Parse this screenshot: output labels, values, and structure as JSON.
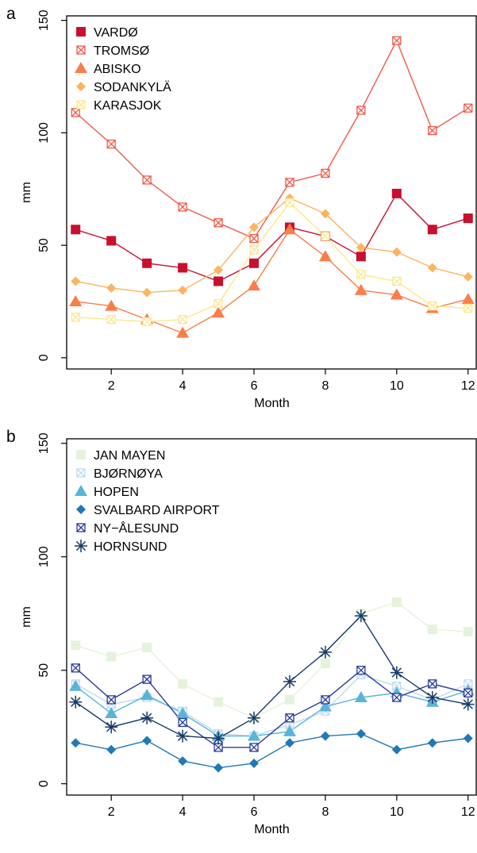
{
  "chart_data": [
    {
      "panel_label": "a",
      "type": "line",
      "xlabel": "Month",
      "ylabel": "mm",
      "xlim": [
        0.75,
        12.25
      ],
      "ylim": [
        -5,
        152
      ],
      "xticks": [
        2,
        4,
        6,
        8,
        10,
        12
      ],
      "yticks": [
        0,
        50,
        100,
        150
      ],
      "x": [
        1,
        2,
        3,
        4,
        5,
        6,
        7,
        8,
        9,
        10,
        11,
        12
      ],
      "legend_position": "top-left",
      "series": [
        {
          "name": "VARDØ",
          "color": "#c8102e",
          "marker": "square",
          "values": [
            57,
            52,
            42,
            40,
            34,
            42,
            58,
            54,
            45,
            73,
            57,
            62
          ]
        },
        {
          "name": "TROMSØ",
          "color": "#f05a4a",
          "marker": "boxed-x",
          "values": [
            109,
            95,
            79,
            67,
            60,
            53,
            78,
            82,
            110,
            141,
            101,
            111
          ]
        },
        {
          "name": "ABISKO",
          "color": "#fb7d48",
          "marker": "triangle",
          "values": [
            25,
            23,
            17,
            11,
            20,
            32,
            57,
            45,
            30,
            28,
            22,
            26
          ]
        },
        {
          "name": "SODANKYLÄ",
          "color": "#fdb460",
          "marker": "diamond",
          "values": [
            34,
            31,
            29,
            30,
            39,
            58,
            71,
            64,
            49,
            47,
            40,
            36
          ]
        },
        {
          "name": "KARASJOK",
          "color": "#fde88c",
          "marker": "boxed-x",
          "values": [
            18,
            17,
            16,
            17,
            24,
            48,
            69,
            54,
            37,
            34,
            23,
            22
          ]
        }
      ]
    },
    {
      "panel_label": "b",
      "type": "line",
      "xlabel": "Month",
      "ylabel": "mm",
      "xlim": [
        0.75,
        12.25
      ],
      "ylim": [
        -5,
        152
      ],
      "xticks": [
        2,
        4,
        6,
        8,
        10,
        12
      ],
      "yticks": [
        0,
        50,
        100,
        150
      ],
      "x": [
        1,
        2,
        3,
        4,
        5,
        6,
        7,
        8,
        9,
        10,
        11,
        12
      ],
      "legend_position": "top-left",
      "series": [
        {
          "name": "JAN MAYEN",
          "color": "#e5f3dc",
          "marker": "square",
          "values": [
            61,
            56,
            60,
            44,
            36,
            29,
            37,
            53,
            75,
            80,
            68,
            67
          ]
        },
        {
          "name": "BJØRNØYA",
          "color": "#bedcf1",
          "marker": "boxed-x",
          "values": [
            44,
            35,
            38,
            32,
            22,
            21,
            26,
            32,
            48,
            43,
            37,
            44
          ]
        },
        {
          "name": "HOPEN",
          "color": "#5ab4d8",
          "marker": "triangle",
          "values": [
            43,
            31,
            39,
            31,
            21,
            21,
            23,
            34,
            38,
            40,
            36,
            41
          ]
        },
        {
          "name": "SVALBARD AIRPORT",
          "color": "#2178b5",
          "marker": "diamond",
          "values": [
            18,
            15,
            19,
            10,
            7,
            9,
            18,
            21,
            22,
            15,
            18,
            20
          ]
        },
        {
          "name": "NY−ÅLESUND",
          "color": "#2b3b9b",
          "marker": "boxed-x",
          "values": [
            51,
            37,
            46,
            27,
            16,
            16,
            29,
            37,
            50,
            38,
            44,
            40
          ]
        },
        {
          "name": "HORNSUND",
          "color": "#173a6b",
          "marker": "asterisk",
          "values": [
            36,
            25,
            29,
            21,
            20,
            29,
            45,
            58,
            74,
            49,
            38,
            35
          ]
        }
      ]
    }
  ]
}
